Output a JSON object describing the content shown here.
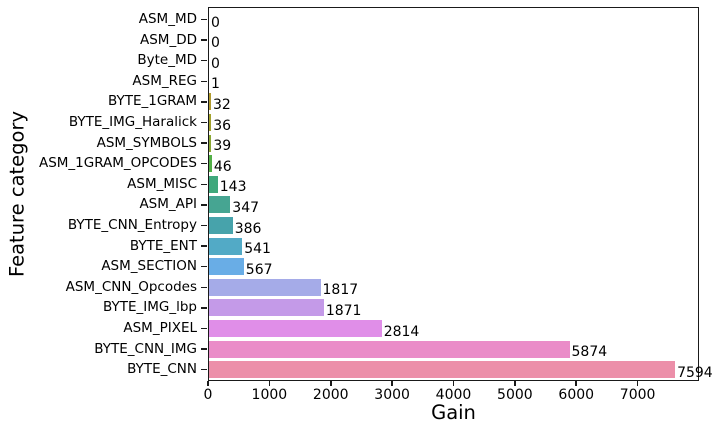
{
  "figure": {
    "background": "#ffffff",
    "spine_color": "#1a1a1a",
    "text_color": "#000000"
  },
  "chart_data": {
    "type": "bar",
    "orientation": "horizontal",
    "title": "",
    "xlabel": "Gain",
    "ylabel": "Feature category",
    "xlim": [
      0,
      8000
    ],
    "grid": false,
    "legend": null,
    "x_tick_labels": [
      "0",
      "1000",
      "2000",
      "3000",
      "4000",
      "5000",
      "6000",
      "7000"
    ],
    "x_tick_values": [
      0,
      1000,
      2000,
      3000,
      4000,
      5000,
      6000,
      7000
    ],
    "categories": [
      "ASM_MD",
      "ASM_DD",
      "Byte_MD",
      "ASM_REG",
      "BYTE_1GRAM",
      "BYTE_IMG_Haralick",
      "ASM_SYMBOLS",
      "ASM_1GRAM_OPCODES",
      "ASM_MISC",
      "ASM_API",
      "BYTE_CNN_Entropy",
      "BYTE_ENT",
      "ASM_SECTION",
      "ASM_CNN_Opcodes",
      "BYTE_IMG_lbp",
      "ASM_PIXEL",
      "BYTE_CNN_IMG",
      "BYTE_CNN"
    ],
    "values": [
      0,
      0,
      0,
      1,
      32,
      36,
      39,
      46,
      143,
      347,
      386,
      541,
      567,
      1817,
      1871,
      2814,
      5874,
      7594
    ],
    "value_labels": [
      "0",
      "0",
      "0",
      "1",
      "32",
      "36",
      "39",
      "46",
      "143",
      "347",
      "386",
      "541",
      "567",
      "1817",
      "1871",
      "2814",
      "5874",
      "7594"
    ],
    "bar_colors": [
      "#f77189",
      "#e68a4e",
      "#cc9633",
      "#bc9832",
      "#b09a2e",
      "#a2a12c",
      "#8aa733",
      "#52b047",
      "#3fa87c",
      "#46a592",
      "#47a3ab",
      "#52aac6",
      "#69ade6",
      "#a5abe8",
      "#c49ae8",
      "#e08ee8",
      "#ea8cc8",
      "#ec8fa9"
    ]
  }
}
